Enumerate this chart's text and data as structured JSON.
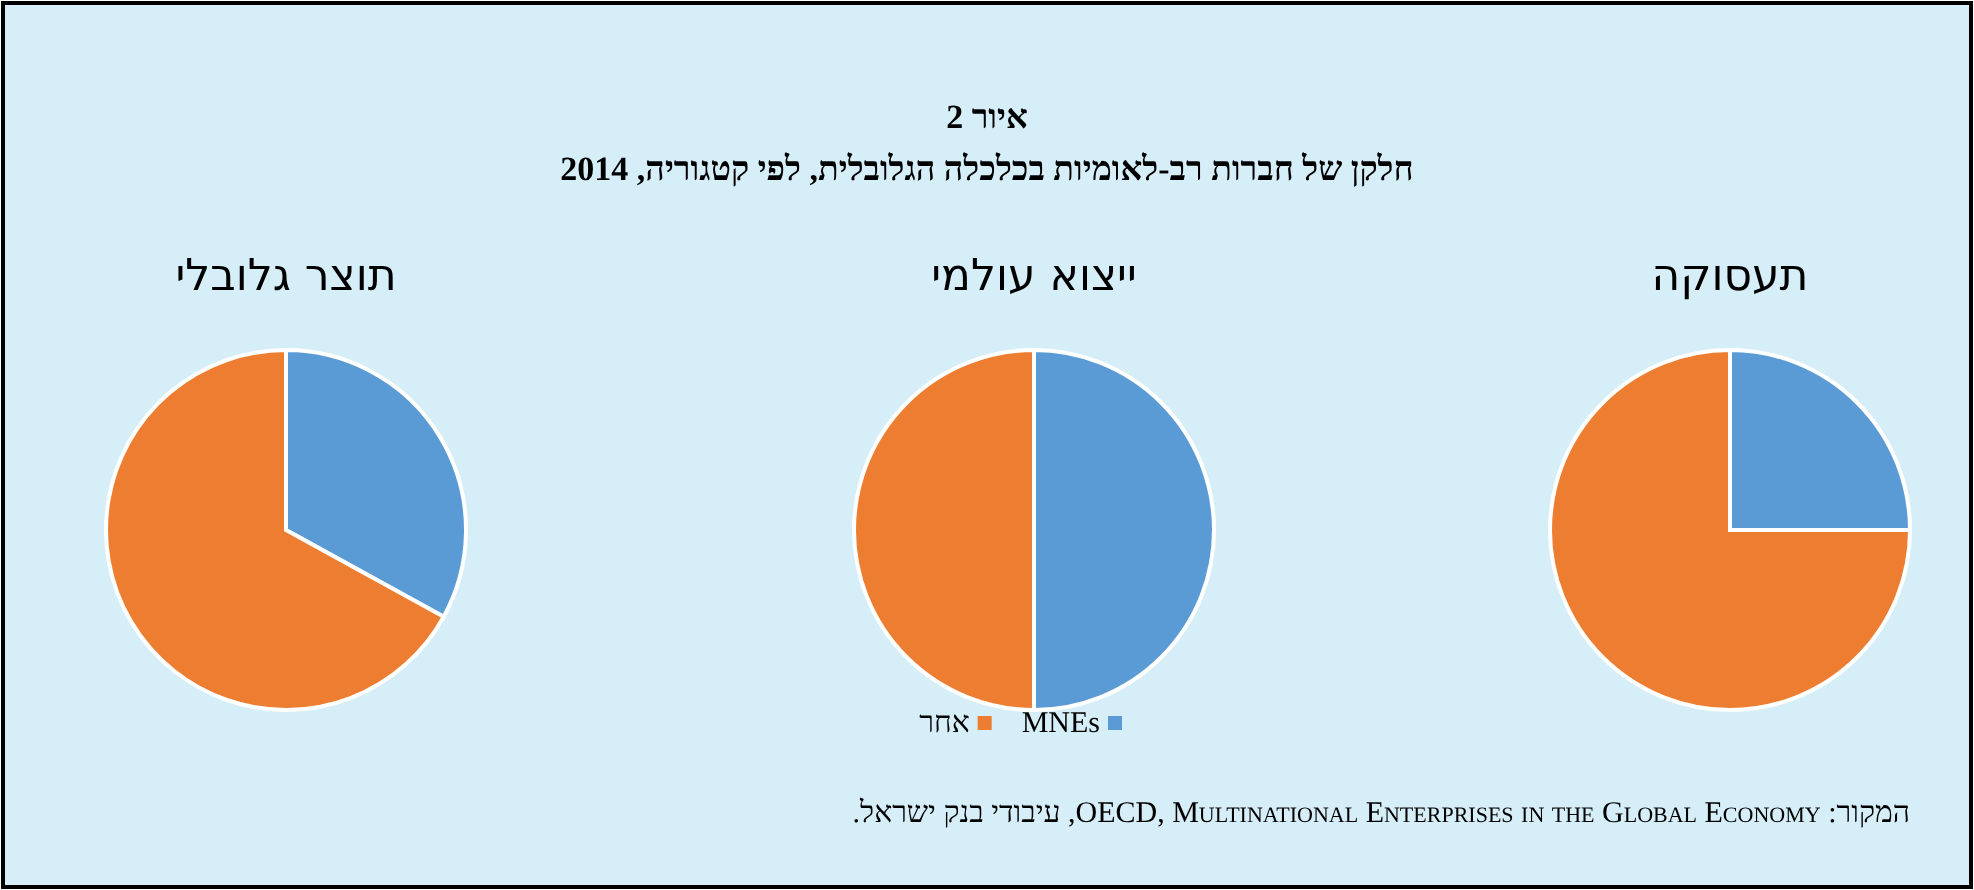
{
  "chart_data": [
    {
      "type": "pie",
      "xlabel": "תעסוקה",
      "categories": [
        null,
        null
      ],
      "values": [
        25,
        75
      ],
      "colors": [
        "#5b9bd5",
        "#ed7d31"
      ]
    },
    {
      "type": "pie",
      "title": "איור 2",
      "subtitle": "חלקן של חברות רב-לאומיות בכלכלה הגלובלית, לפי קטגוריה, 2014",
      "xlabel": "ייצוא עולמי",
      "categories": [
        "MNEs",
        "אחר"
      ],
      "values": [
        50,
        50
      ],
      "colors": [
        "#5b9bd5",
        "#ed7d31"
      ],
      "legend": "bottom",
      "annotations": [
        "המקור: OECD, Multinational Enterprises in the Global Economy, עיבודי בנק ישראל."
      ]
    },
    {
      "type": "pie",
      "xlabel": "תוצר גלובלי",
      "categories": [
        null,
        null
      ],
      "values": [
        33,
        67
      ],
      "colors": [
        "#5b9bd5",
        "#ed7d31"
      ]
    }
  ]
}
